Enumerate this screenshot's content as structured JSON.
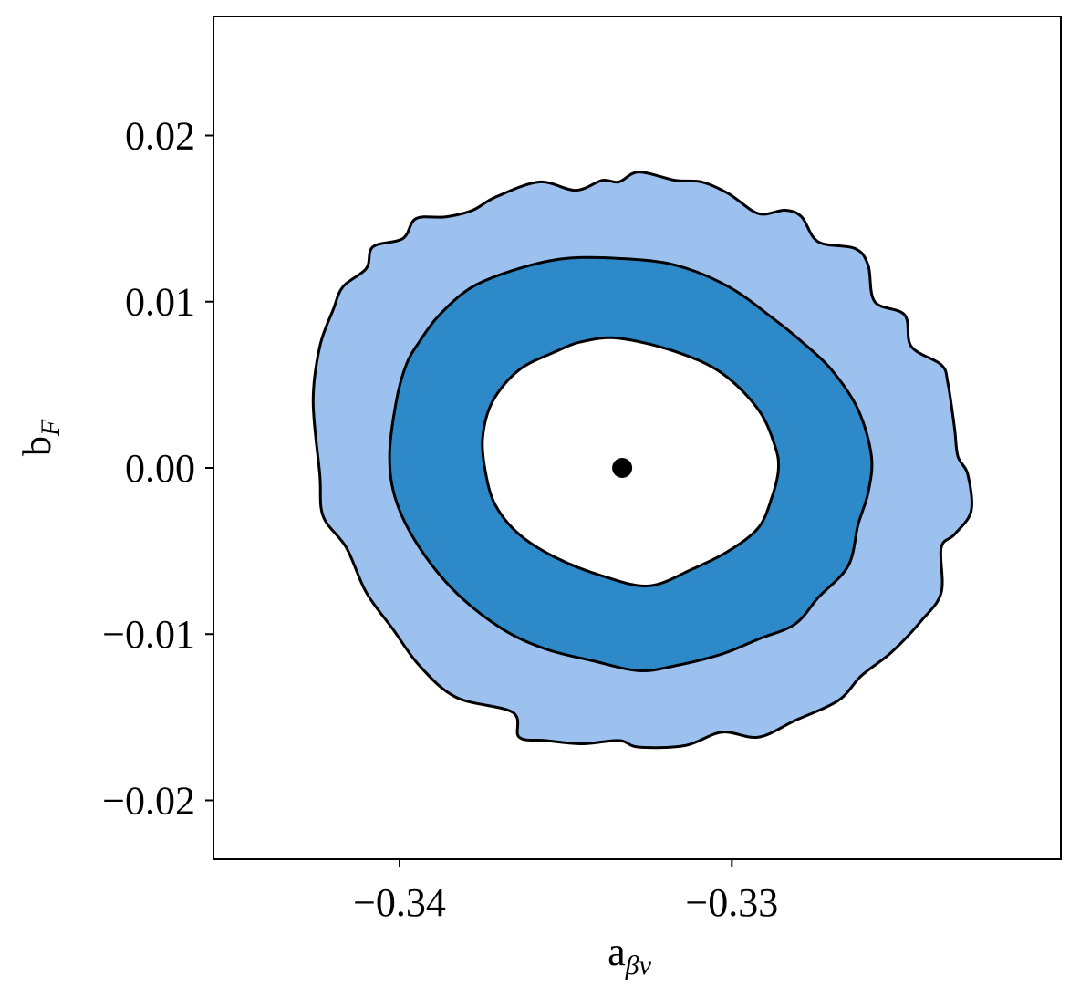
{
  "chart_data": {
    "type": "contour",
    "xlabel": "a",
    "xlabel_sub": "βν",
    "ylabel": "b",
    "ylabel_sub": "F",
    "xlim": [
      -0.3456,
      -0.3201
    ],
    "ylim": [
      -0.02354,
      0.02716
    ],
    "xticks": [
      {
        "value": -0.34,
        "label": "−0.34"
      },
      {
        "value": -0.33,
        "label": "−0.33"
      }
    ],
    "yticks": [
      {
        "value": -0.02,
        "label": "−0.02"
      },
      {
        "value": -0.01,
        "label": "−0.01"
      },
      {
        "value": 0,
        "label": "0.00"
      },
      0.01,
      0.02
    ],
    "contours": [
      {
        "color": "#9dc1ee",
        "x": [
          -0.3328,
          -0.3317,
          -0.3309,
          -0.3301,
          -0.3292,
          -0.3284,
          -0.3279,
          -0.3274,
          -0.3263,
          -0.3259,
          -0.3257,
          -0.3248,
          -0.3246,
          -0.3237,
          -0.3235,
          -0.3233,
          -0.3232,
          -0.3229,
          -0.3228,
          -0.3233,
          -0.3237,
          -0.3237,
          -0.3243,
          -0.3252,
          -0.3261,
          -0.3268,
          -0.3281,
          -0.3292,
          -0.3303,
          -0.3314,
          -0.3328,
          -0.3334,
          -0.3345,
          -0.3356,
          -0.3364,
          -0.3366,
          -0.3383,
          -0.3394,
          -0.3402,
          -0.341,
          -0.3416,
          -0.3423,
          -0.3424,
          -0.3426,
          -0.3424,
          -0.342,
          -0.3417,
          -0.341,
          -0.3408,
          -0.3399,
          -0.3395,
          -0.3386,
          -0.3378,
          -0.3371,
          -0.3358,
          -0.3347,
          -0.3339,
          -0.3334
        ],
        "y": [
          0.0178,
          0.0173,
          0.0172,
          0.0165,
          0.0153,
          0.0155,
          0.0151,
          0.0136,
          0.0132,
          0.0122,
          0.01,
          0.0092,
          0.0073,
          0.0062,
          0.0051,
          0.0024,
          0.0007,
          -0.0004,
          -0.0026,
          -0.004,
          -0.0048,
          -0.0075,
          -0.0092,
          -0.0111,
          -0.0125,
          -0.014,
          -0.0152,
          -0.0162,
          -0.0159,
          -0.0167,
          -0.0168,
          -0.0164,
          -0.0166,
          -0.0164,
          -0.0162,
          -0.0147,
          -0.0138,
          -0.0119,
          -0.0097,
          -0.0075,
          -0.0048,
          -0.0029,
          -0.0004,
          0.004,
          0.0073,
          0.0095,
          0.0109,
          0.012,
          0.0133,
          0.0138,
          0.015,
          0.0151,
          0.0155,
          0.0163,
          0.0172,
          0.0167,
          0.0173,
          0.0172
        ]
      },
      {
        "color": "#2e89c9",
        "x": [
          -0.3334,
          -0.3317,
          -0.3301,
          -0.3287,
          -0.3279,
          -0.327,
          -0.3262,
          -0.3258,
          -0.3259,
          -0.3262,
          -0.3265,
          -0.3274,
          -0.3281,
          -0.3292,
          -0.3303,
          -0.3317,
          -0.3328,
          -0.3342,
          -0.3356,
          -0.3369,
          -0.3383,
          -0.3394,
          -0.3401,
          -0.3403,
          -0.3401,
          -0.3398,
          -0.3394,
          -0.3388,
          -0.3378,
          -0.3364,
          -0.335
        ],
        "y": [
          0.0126,
          0.0122,
          0.0109,
          0.0089,
          0.0076,
          0.0059,
          0.0035,
          0.0007,
          -0.0015,
          -0.0034,
          -0.0059,
          -0.0078,
          -0.0094,
          -0.0103,
          -0.0112,
          -0.0119,
          -0.0122,
          -0.0116,
          -0.0109,
          -0.0097,
          -0.0075,
          -0.0048,
          -0.002,
          0.0007,
          0.004,
          0.0062,
          0.0076,
          0.0092,
          0.0109,
          0.012,
          0.0126
        ]
      },
      {
        "color": "#ffffff",
        "x": [
          -0.3334,
          -0.3317,
          -0.3303,
          -0.3292,
          -0.3287,
          -0.3286,
          -0.3288,
          -0.3292,
          -0.3301,
          -0.3312,
          -0.3325,
          -0.3339,
          -0.3353,
          -0.3364,
          -0.3371,
          -0.3374,
          -0.3375,
          -0.3372,
          -0.3364,
          -0.3353,
          -0.3345
        ],
        "y": [
          0.0078,
          0.007,
          0.0057,
          0.0035,
          0.0013,
          -0.0001,
          -0.0018,
          -0.0036,
          -0.005,
          -0.0061,
          -0.0071,
          -0.0065,
          -0.0054,
          -0.004,
          -0.0023,
          -0.0004,
          0.0018,
          0.004,
          0.0059,
          0.007,
          0.0076
        ]
      }
    ],
    "point": {
      "x": -0.3333,
      "y": 0,
      "color": "#000000"
    }
  }
}
